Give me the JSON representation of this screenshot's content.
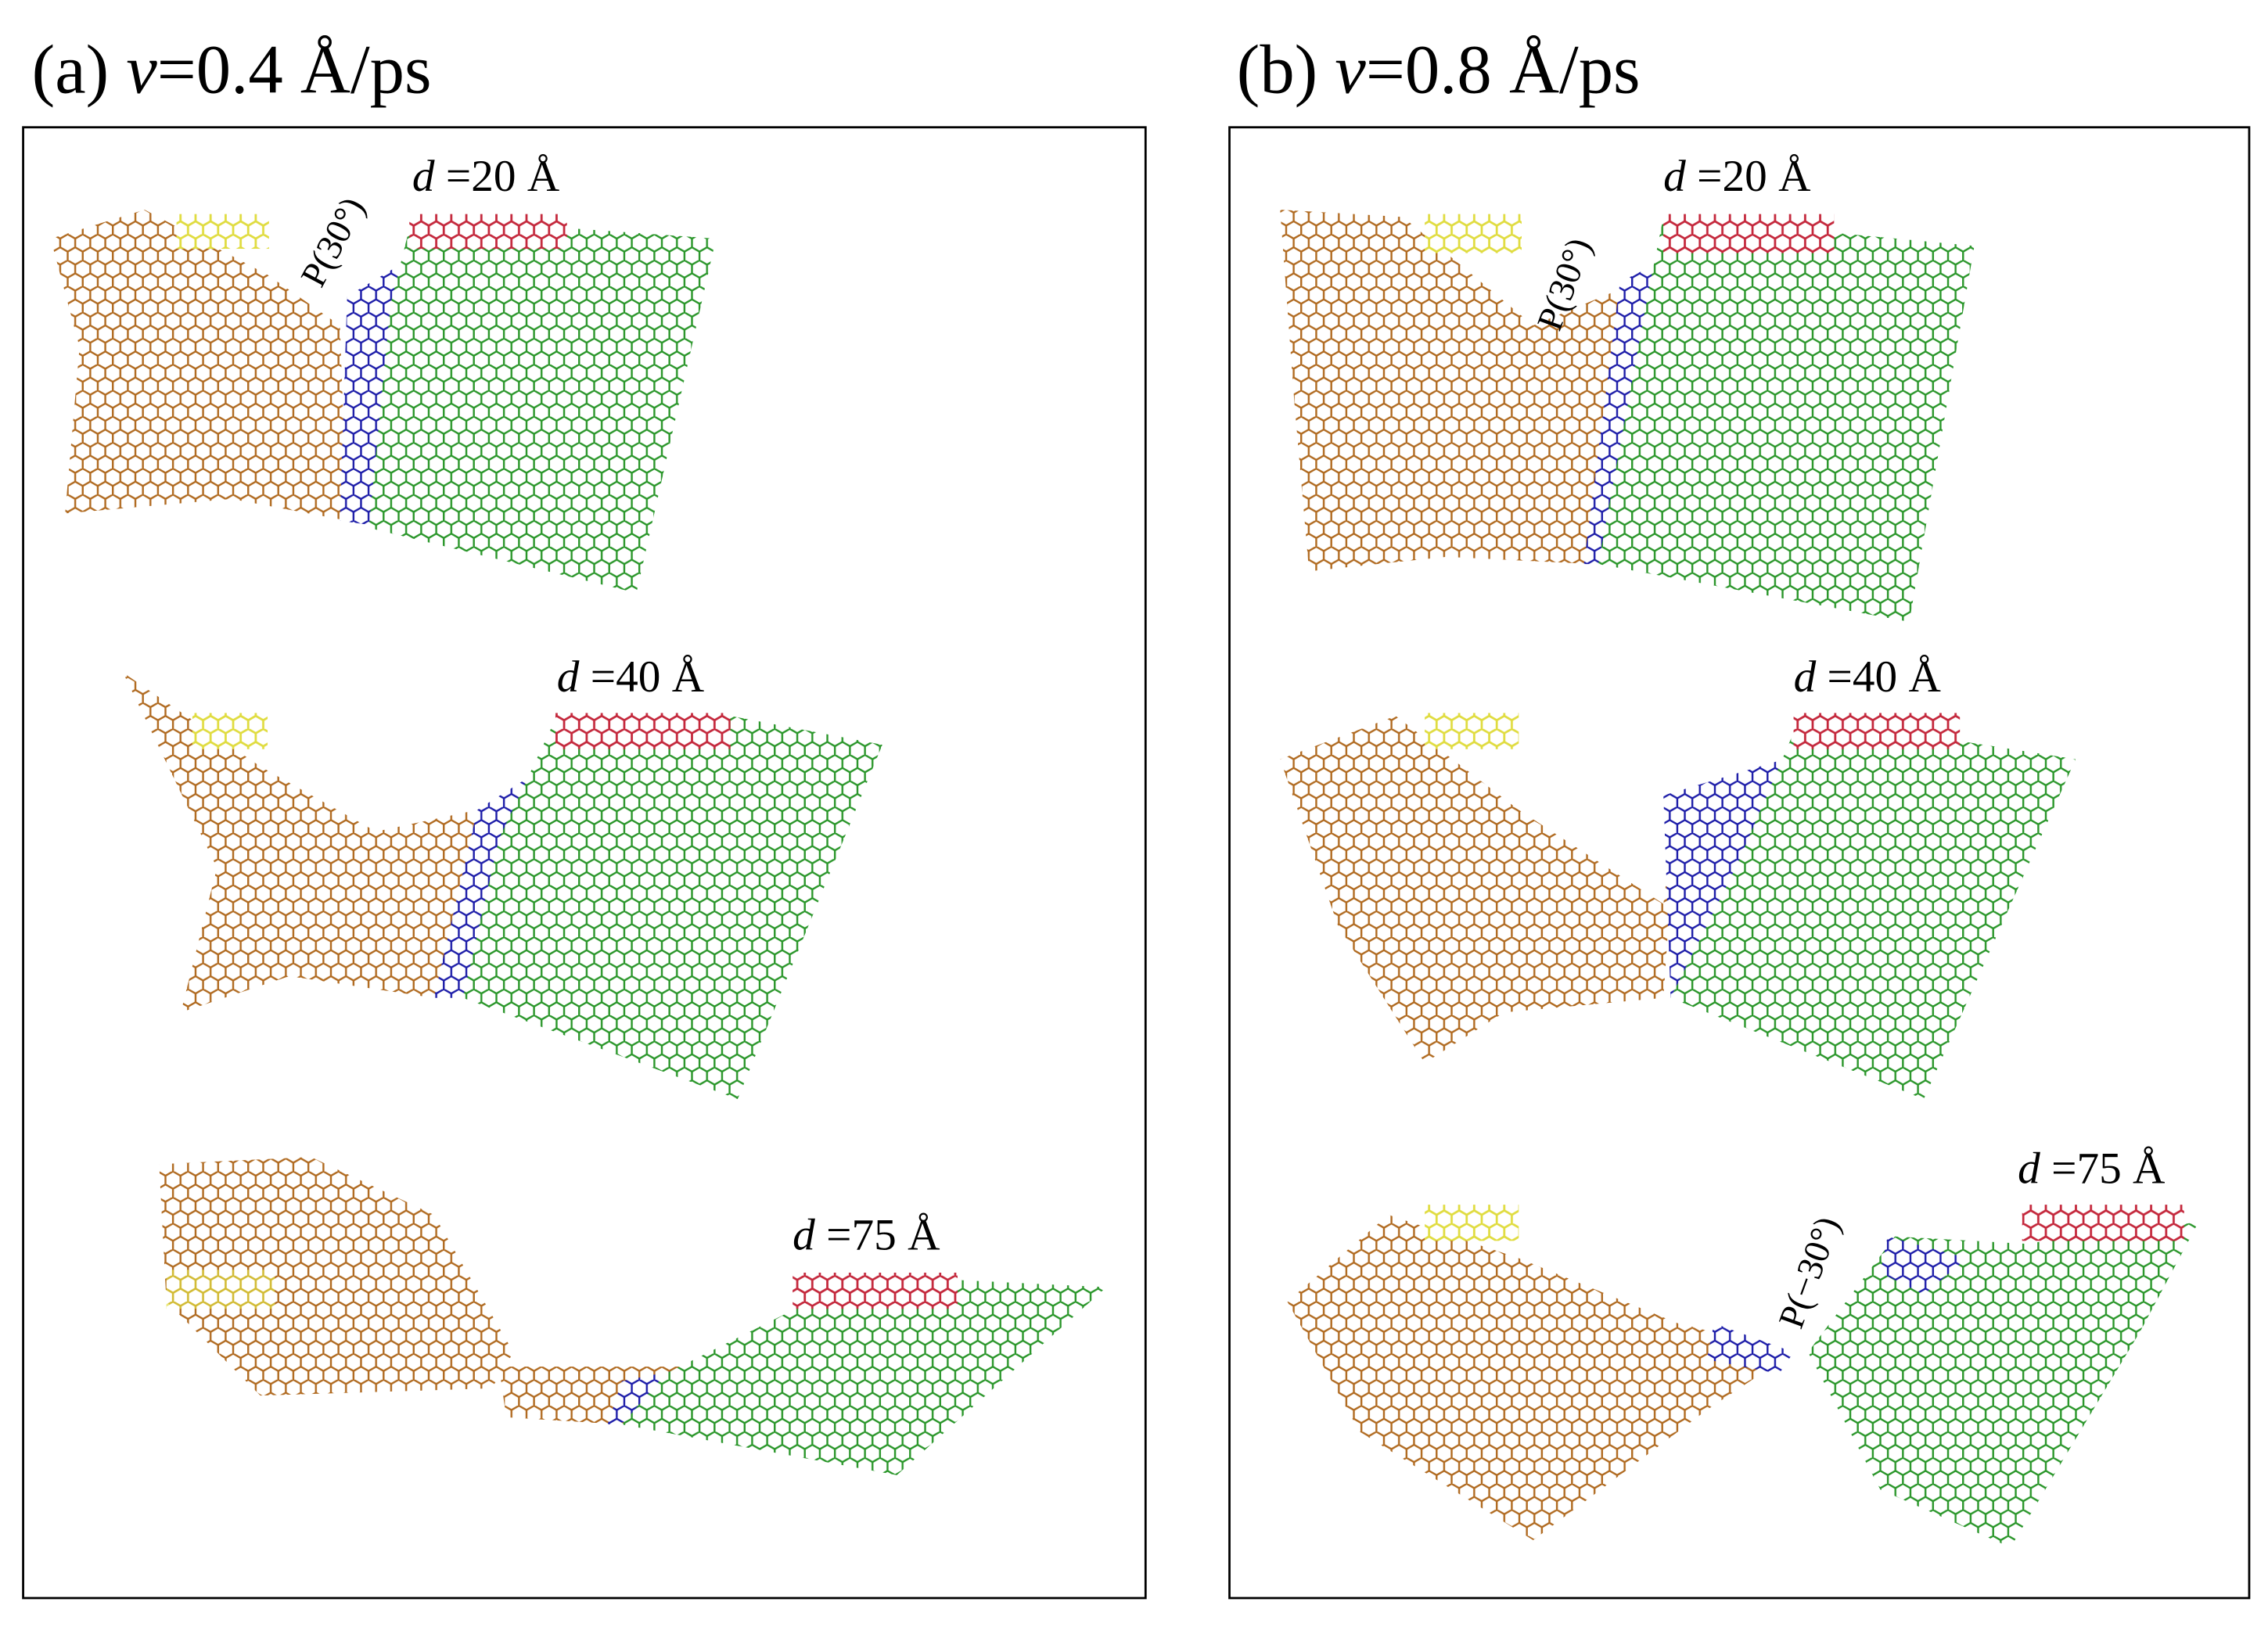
{
  "panels": [
    {
      "label": "(a)",
      "symbol": "v",
      "value": "=0.4 Å/ps",
      "snapshots": [
        {
          "symbol": "d",
          "value": "=20 Å",
          "annotation": "P(30°)"
        },
        {
          "symbol": "d",
          "value": "=40 Å"
        },
        {
          "symbol": "d",
          "value": "=75 Å"
        }
      ]
    },
    {
      "label": "(b)",
      "symbol": "v",
      "value": "=0.8 Å/ps",
      "snapshots": [
        {
          "symbol": "d",
          "value": "=20 Å",
          "annotation": "P(30°)"
        },
        {
          "symbol": "d",
          "value": "=40 Å"
        },
        {
          "symbol": "d",
          "value": "=75 Å",
          "annotation": "P(−30°)"
        }
      ]
    }
  ]
}
